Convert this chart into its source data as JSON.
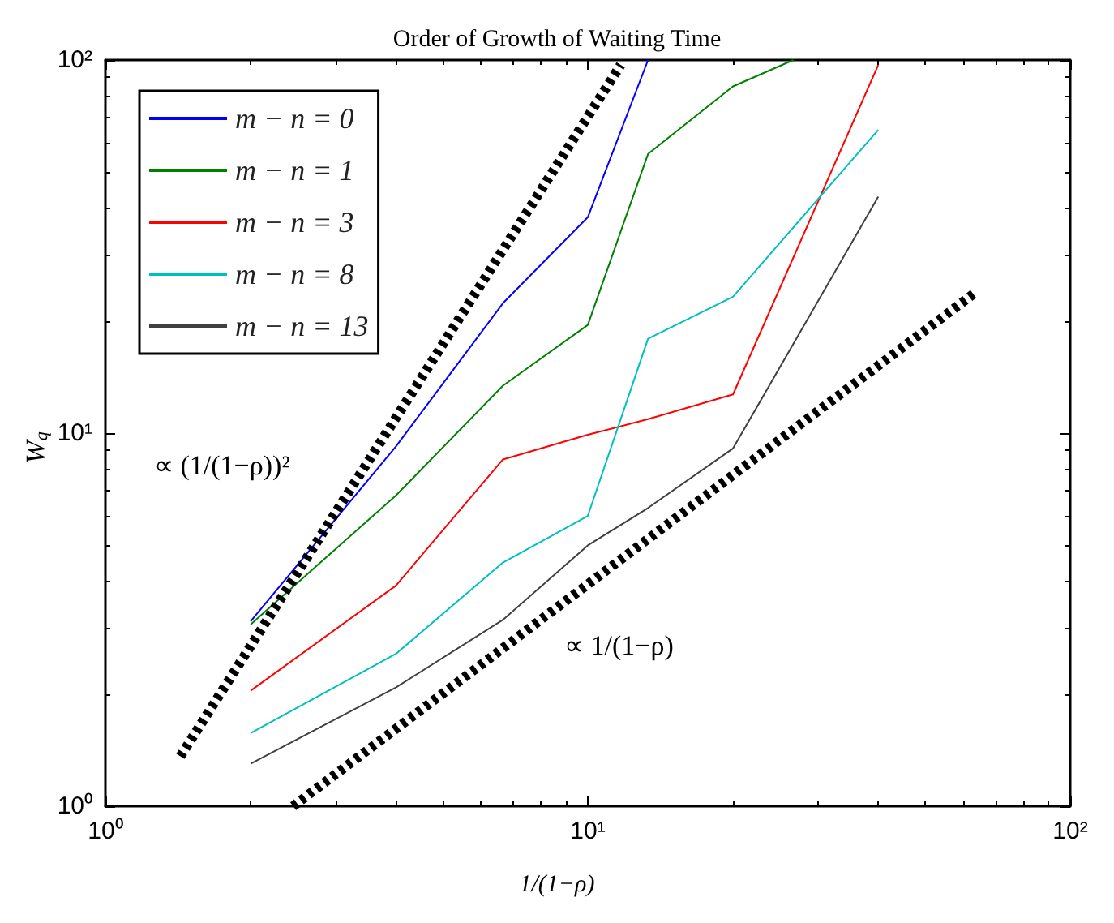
{
  "chart_data": {
    "type": "line",
    "title": "Order of Growth of Waiting Time",
    "xlabel": "1/(1−ρ)",
    "ylabel": "W$_{q}$",
    "log": "xy",
    "xlim": [
      1,
      100
    ],
    "ylim": [
      1,
      100
    ],
    "xticks": [
      {
        "value": 1,
        "label": "10⁰"
      },
      {
        "value": 10,
        "label": "10¹"
      },
      {
        "value": 100,
        "label": "10²"
      }
    ],
    "yticks": [
      {
        "value": 1,
        "label": "10⁰"
      },
      {
        "value": 10,
        "label": "10¹"
      },
      {
        "value": 100,
        "label": "10²"
      }
    ],
    "grid": false,
    "legend": "top left",
    "marker": "none",
    "line_style": "solid",
    "series": [
      {
        "name": "m − n = 0",
        "color": "#0000ff",
        "x": [
          2,
          4,
          6.67,
          10,
          13.33
        ],
        "values": [
          3.13,
          9.2,
          22.3,
          37.9,
          100
        ]
      },
      {
        "name": "m − n = 1",
        "color": "#008000",
        "x": [
          2,
          4,
          6.67,
          10,
          13.33,
          20,
          26.67
        ],
        "values": [
          3.07,
          6.8,
          13.4,
          19.5,
          56,
          85,
          100
        ]
      },
      {
        "name": "m − n = 3",
        "color": "#ff0000",
        "x": [
          2,
          4,
          6.67,
          10,
          13.33,
          20,
          40
        ],
        "values": [
          2.04,
          3.9,
          8.5,
          9.9,
          10.9,
          12.7,
          97
        ]
      },
      {
        "name": "m − n = 8",
        "color": "#00bfbf",
        "x": [
          2,
          4,
          6.67,
          10,
          13.33,
          20,
          40
        ],
        "values": [
          1.57,
          2.56,
          4.5,
          6.0,
          17.9,
          23.2,
          65
        ]
      },
      {
        "name": "m − n = 13",
        "color": "#404040",
        "x": [
          2,
          4,
          6.67,
          10,
          13.33,
          20,
          40
        ],
        "values": [
          1.3,
          2.08,
          3.16,
          5.0,
          6.3,
          9.1,
          43
        ]
      },
      {
        "type": "line",
        "color": "#000000",
        "line_style": "dashed",
        "x": [
          1.43,
          11.7
        ],
        "values": [
          1.36,
          97
        ]
      },
      {
        "type": "line",
        "color": "#000000",
        "line_style": "dashed",
        "x": [
          2.45,
          63
        ],
        "values": [
          1,
          23.6
        ]
      }
    ],
    "annotations": [
      "∝ (1/(1−ρ))²",
      "∝ 1/(1−ρ)"
    ]
  }
}
